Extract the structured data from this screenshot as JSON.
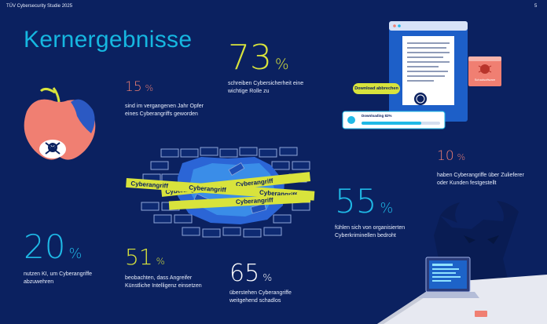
{
  "header": {
    "left": "TÜV Cybersecurity Studie 2025",
    "page_number": "5"
  },
  "title": "Kernergebnisse",
  "stats": [
    {
      "id": "73",
      "value": "73",
      "unit": "%",
      "text": [
        "schreiben Cybersicherheit eine",
        "wichtige Rolle zu"
      ],
      "color": "#d8e33c"
    },
    {
      "id": "15",
      "value": "15",
      "unit": "%",
      "text": [
        "sind im vergangenen Jahr Opfer",
        "eines Cyberangriffs geworden"
      ],
      "color": "#f07f72"
    },
    {
      "id": "10",
      "value": "10",
      "unit": "%",
      "text": [
        "haben Cyberangriffe über Zulieferer",
        "oder Kunden festgestellt"
      ],
      "color": "#f07f72"
    },
    {
      "id": "55",
      "value": "55",
      "unit": "%",
      "text": [
        "fühlen sich von organisierten",
        "Cyberkriminellen bedroht"
      ],
      "color": "#1fb9e6"
    },
    {
      "id": "20",
      "value": "20",
      "unit": "%",
      "text": [
        "nutzen KI, um Cyberangriffe",
        "abzuwehren"
      ],
      "color": "#1fb9e6"
    },
    {
      "id": "51",
      "value": "51",
      "unit": "%",
      "text": [
        "beobachten, dass Angreifer",
        "Künstliche Intelligenz einsetzen"
      ],
      "color": "#d8e33c"
    },
    {
      "id": "65",
      "value": "65",
      "unit": "%",
      "text": [
        "überstehen Cyberangriffe",
        "weitgehend schadlos"
      ],
      "color": "#ffffff"
    }
  ],
  "illustrations": {
    "download_button": "Download abbrechen",
    "download_progress": "Downloading 82%",
    "malware_label": "Schadsoftware",
    "tape_text": "Cyberangriff",
    "icons": [
      "apple-skull-icon",
      "cracked-wall-icon",
      "document-window-icon",
      "bug-icon",
      "laptop-icon",
      "shadow-devil-icon"
    ]
  }
}
